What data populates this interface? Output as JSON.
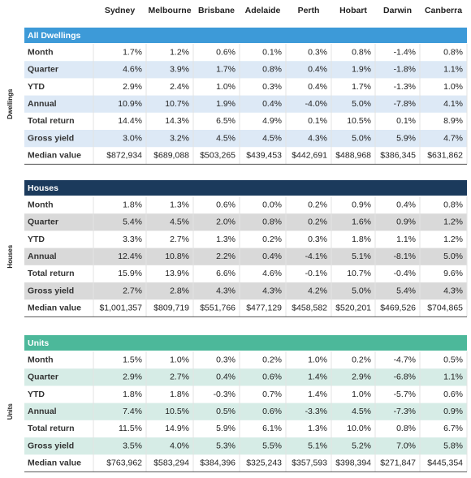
{
  "header": {
    "columns": [
      "Sydney",
      "Melbourne",
      "Brisbane",
      "Adelaide",
      "Perth",
      "Hobart",
      "Darwin",
      "Canberra"
    ]
  },
  "sections": [
    {
      "title": "All Dwellings",
      "side_label": "Dwellings",
      "rows": [
        {
          "label": "Month",
          "values": [
            "1.7%",
            "1.2%",
            "0.6%",
            "0.1%",
            "0.3%",
            "0.8%",
            "-1.4%",
            "0.8%"
          ]
        },
        {
          "label": "Quarter",
          "values": [
            "4.6%",
            "3.9%",
            "1.7%",
            "0.8%",
            "0.4%",
            "1.9%",
            "-1.8%",
            "1.1%"
          ]
        },
        {
          "label": "YTD",
          "values": [
            "2.9%",
            "2.4%",
            "1.0%",
            "0.3%",
            "0.4%",
            "1.7%",
            "-1.3%",
            "1.0%"
          ]
        },
        {
          "label": "Annual",
          "values": [
            "10.9%",
            "10.7%",
            "1.9%",
            "0.4%",
            "-4.0%",
            "5.0%",
            "-7.8%",
            "4.1%"
          ]
        },
        {
          "label": "Total return",
          "values": [
            "14.4%",
            "14.3%",
            "6.5%",
            "4.9%",
            "0.1%",
            "10.5%",
            "0.1%",
            "8.9%"
          ]
        },
        {
          "label": "Gross yield",
          "values": [
            "3.0%",
            "3.2%",
            "4.5%",
            "4.5%",
            "4.3%",
            "5.0%",
            "5.9%",
            "4.7%"
          ]
        },
        {
          "label": "Median value",
          "values": [
            "$872,934",
            "$689,088",
            "$503,265",
            "$439,453",
            "$442,691",
            "$488,968",
            "$386,345",
            "$631,862"
          ]
        }
      ]
    },
    {
      "title": "Houses",
      "side_label": "Houses",
      "rows": [
        {
          "label": "Month",
          "values": [
            "1.8%",
            "1.3%",
            "0.6%",
            "0.0%",
            "0.2%",
            "0.9%",
            "0.4%",
            "0.8%"
          ]
        },
        {
          "label": "Quarter",
          "values": [
            "5.4%",
            "4.5%",
            "2.0%",
            "0.8%",
            "0.2%",
            "1.6%",
            "0.9%",
            "1.2%"
          ]
        },
        {
          "label": "YTD",
          "values": [
            "3.3%",
            "2.7%",
            "1.3%",
            "0.2%",
            "0.3%",
            "1.8%",
            "1.1%",
            "1.2%"
          ]
        },
        {
          "label": "Annual",
          "values": [
            "12.4%",
            "10.8%",
            "2.2%",
            "0.4%",
            "-4.1%",
            "5.1%",
            "-8.1%",
            "5.0%"
          ]
        },
        {
          "label": "Total return",
          "values": [
            "15.9%",
            "13.9%",
            "6.6%",
            "4.6%",
            "-0.1%",
            "10.7%",
            "-0.4%",
            "9.6%"
          ]
        },
        {
          "label": "Gross yield",
          "values": [
            "2.7%",
            "2.8%",
            "4.3%",
            "4.3%",
            "4.2%",
            "5.0%",
            "5.4%",
            "4.3%"
          ]
        },
        {
          "label": "Median value",
          "values": [
            "$1,001,357",
            "$809,719",
            "$551,766",
            "$477,129",
            "$458,582",
            "$520,201",
            "$469,526",
            "$704,865"
          ]
        }
      ]
    },
    {
      "title": "Units",
      "side_label": "Units",
      "rows": [
        {
          "label": "Month",
          "values": [
            "1.5%",
            "1.0%",
            "0.3%",
            "0.2%",
            "1.0%",
            "0.2%",
            "-4.7%",
            "0.5%"
          ]
        },
        {
          "label": "Quarter",
          "values": [
            "2.9%",
            "2.7%",
            "0.4%",
            "0.6%",
            "1.4%",
            "2.9%",
            "-6.8%",
            "1.1%"
          ]
        },
        {
          "label": "YTD",
          "values": [
            "1.8%",
            "1.8%",
            "-0.3%",
            "0.7%",
            "1.4%",
            "1.0%",
            "-5.7%",
            "0.6%"
          ]
        },
        {
          "label": "Annual",
          "values": [
            "7.4%",
            "10.5%",
            "0.5%",
            "0.6%",
            "-3.3%",
            "4.5%",
            "-7.3%",
            "0.9%"
          ]
        },
        {
          "label": "Total return",
          "values": [
            "11.5%",
            "14.9%",
            "5.9%",
            "6.1%",
            "1.3%",
            "10.0%",
            "0.8%",
            "6.7%"
          ]
        },
        {
          "label": "Gross yield",
          "values": [
            "3.5%",
            "4.0%",
            "5.3%",
            "5.5%",
            "5.1%",
            "5.2%",
            "7.0%",
            "5.8%"
          ]
        },
        {
          "label": "Median value",
          "values": [
            "$763,962",
            "$583,294",
            "$384,396",
            "$325,243",
            "$357,593",
            "$398,394",
            "$271,847",
            "$445,354"
          ]
        }
      ]
    }
  ]
}
